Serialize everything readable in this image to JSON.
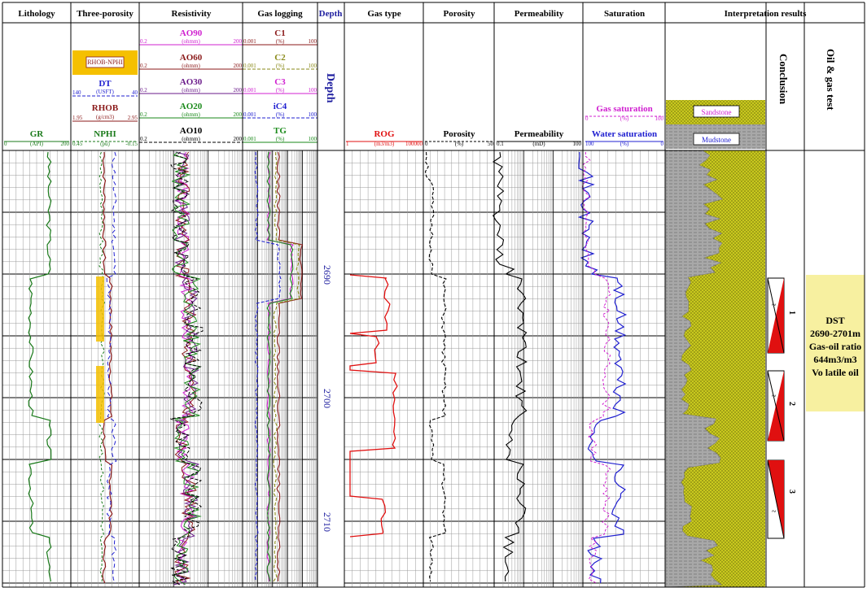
{
  "columns": {
    "lithology": "Lithology",
    "three_porosity": "Three-porosity",
    "resistivity": "Resistivity",
    "gas_logging": "Gas logging",
    "depth": "Depth",
    "gas_type": "Gas type",
    "porosity": "Porosity",
    "permeability": "Permeability",
    "saturation": "Saturation",
    "interpretation": "Interpretation results"
  },
  "lithology_curves": {
    "gr": {
      "name": "GR",
      "unit": "(API)",
      "min": "0",
      "max": "200",
      "color": "#1a7a1a"
    }
  },
  "three_porosity_curves": {
    "box": "RHOB-NPHI",
    "dt": {
      "name": "DT",
      "unit": "(USFT)",
      "min": "140",
      "max": "40",
      "color": "#2020d0"
    },
    "rhob": {
      "name": "RHOB",
      "unit": "(g/cm3)",
      "min": "1.95",
      "max": "2.95",
      "color": "#8b1a1a"
    },
    "nphi": {
      "name": "NPHI",
      "unit": "(pu)",
      "min": "0.45",
      "max": "-0.15",
      "color": "#1a7a1a"
    }
  },
  "resistivity_curves": [
    {
      "name": "AO90",
      "unit": "(ohmm)",
      "min": "0.2",
      "max": "200",
      "color": "#d020d0"
    },
    {
      "name": "AO60",
      "unit": "(ohmm)",
      "min": "0.2",
      "max": "200",
      "color": "#8b1a1a"
    },
    {
      "name": "AO30",
      "unit": "(ohmm)",
      "min": "0.2",
      "max": "200",
      "color": "#6a1a8a"
    },
    {
      "name": "AO20",
      "unit": "(ohmm)",
      "min": "0.2",
      "max": "200",
      "color": "#1a8a1a"
    },
    {
      "name": "AO10",
      "unit": "(ohmm)",
      "min": "0.2",
      "max": "200",
      "color": "#000000"
    }
  ],
  "gas_curves": [
    {
      "name": "C1",
      "unit": "(%)",
      "min": "0.001",
      "max": "100",
      "color": "#8b1a1a"
    },
    {
      "name": "C2",
      "unit": "(%)",
      "min": "0.001",
      "max": "100",
      "color": "#8a8a1a"
    },
    {
      "name": "C3",
      "unit": "(%)",
      "min": "0.001",
      "max": "100",
      "color": "#d020d0"
    },
    {
      "name": "iC4",
      "unit": "(%)",
      "min": "0.001",
      "max": "100",
      "color": "#2020d0"
    },
    {
      "name": "TG",
      "unit": "(%)",
      "min": "0.001",
      "max": "100",
      "color": "#1a8a1a"
    }
  ],
  "depth_label": "Depth",
  "depth_ticks": [
    "2690",
    "2700",
    "2710"
  ],
  "rog": {
    "name": "ROG",
    "unit": "(m3/m3)",
    "min": "1",
    "max": "100000",
    "color": "#e01010"
  },
  "porosity_curve": {
    "name": "Porosity",
    "unit": "(%)",
    "min": "0",
    "max": "50",
    "color": "#000000"
  },
  "permeability_curve": {
    "name": "Permeability",
    "unit": "(mD)",
    "min": "0.1",
    "max": "100",
    "color": "#000000"
  },
  "saturation_curves": {
    "gas": {
      "name": "Gas saturation",
      "unit": "(%)",
      "min": "0",
      "max": "100",
      "color": "#d020d0"
    },
    "water": {
      "name": "Water saturation",
      "unit": "(%)",
      "min": "100",
      "max": "0",
      "color": "#2020d0"
    }
  },
  "legend": {
    "sandstone": "Sandstone",
    "mudstone": "Mudstone"
  },
  "conclusion_label": "Conclusion",
  "oil_gas_test_label": "Oil & gas test",
  "zones": [
    "1",
    "2",
    "3"
  ],
  "test_result": [
    "DST",
    "2690-2701m",
    "Gas-oil ratio",
    "644m3/m3",
    "Vo latile oil"
  ],
  "colors": {
    "sand": "#c9c91e",
    "shale": "#a8a8a8",
    "test_box": "#f7f0a0",
    "grid": "#000000",
    "red": "#e01010"
  }
}
